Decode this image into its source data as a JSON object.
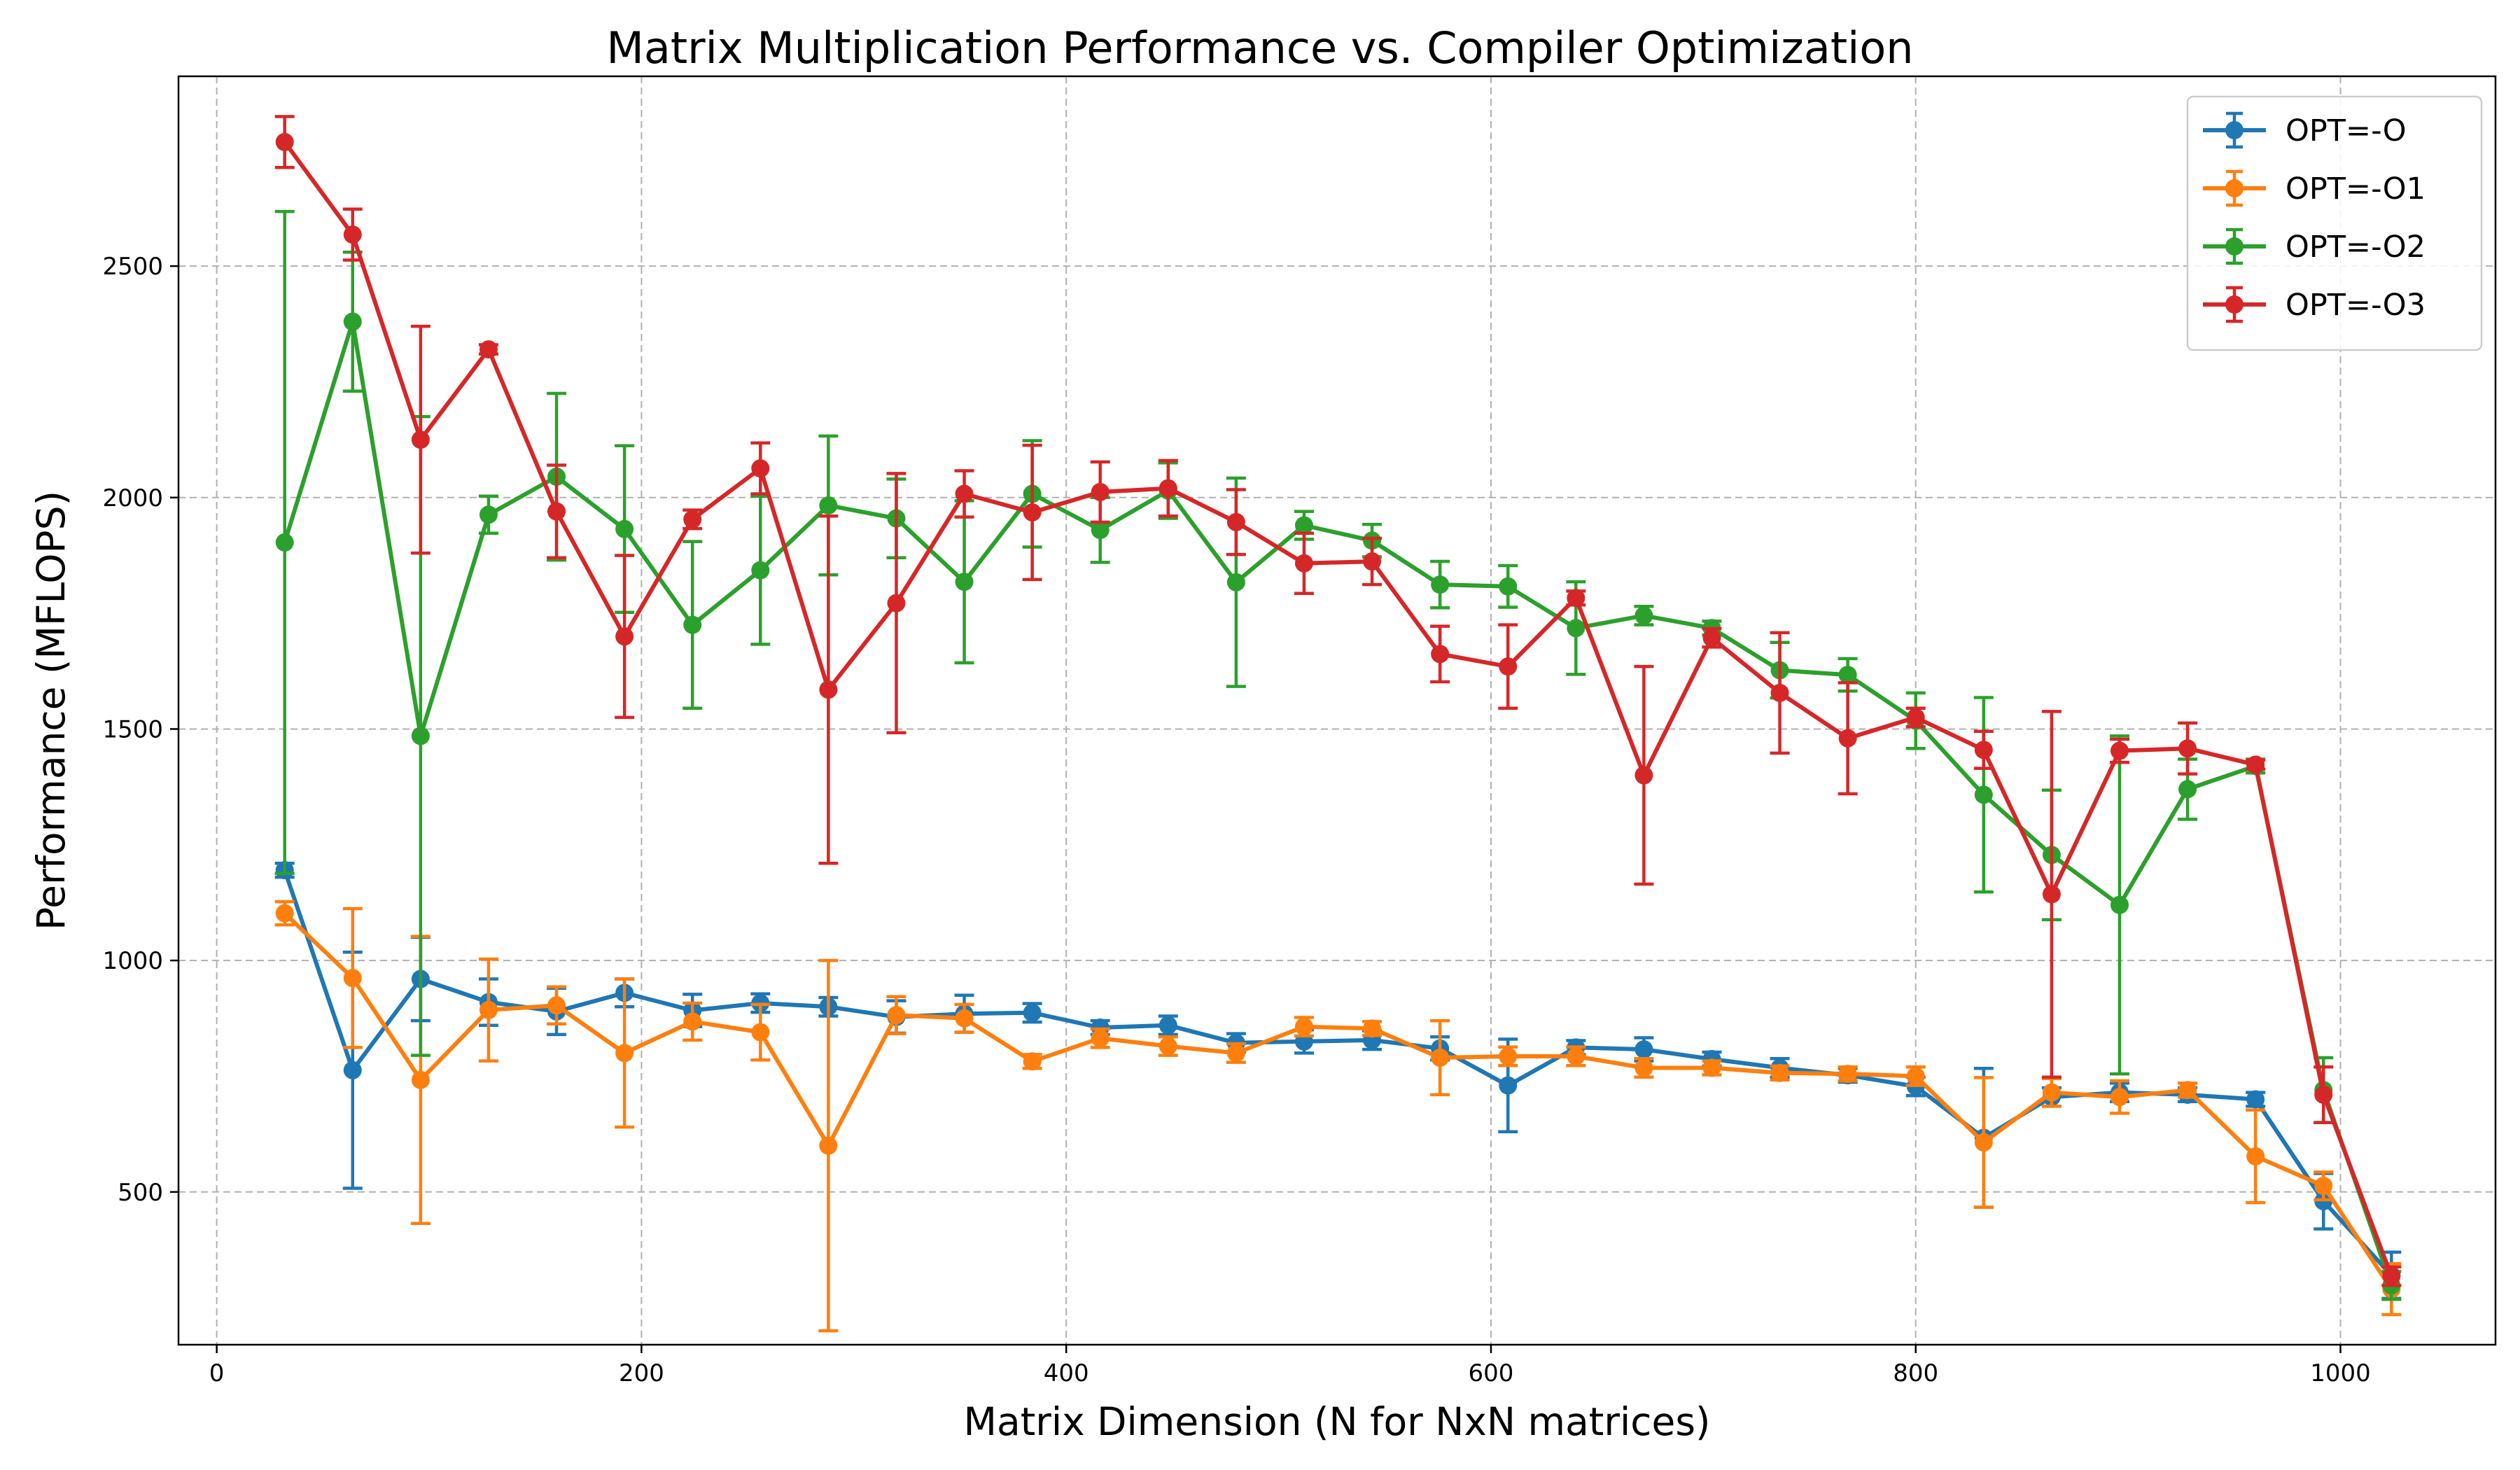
{
  "chart_data": {
    "type": "line",
    "title": "Matrix Multiplication Performance vs. Compiler Optimization",
    "xlabel": "Matrix Dimension (N for NxN matrices)",
    "ylabel": "Performance (MFLOPS)",
    "xlim": [
      -18,
      1073
    ],
    "ylim": [
      170,
      2910
    ],
    "xticks": [
      0,
      200,
      400,
      600,
      800,
      1000
    ],
    "yticks": [
      500,
      1000,
      1500,
      2000,
      2500
    ],
    "grid": true,
    "legend_position": "top-right",
    "error_bars": true,
    "x": [
      32,
      64,
      96,
      128,
      160,
      192,
      224,
      256,
      288,
      320,
      352,
      384,
      416,
      448,
      480,
      512,
      544,
      576,
      608,
      640,
      672,
      704,
      736,
      768,
      800,
      832,
      864,
      896,
      928,
      960,
      992,
      1024
    ],
    "series": [
      {
        "name": "OPT=-O",
        "color": "#1f77b4",
        "values": [
          1195,
          763,
          960,
          910,
          890,
          930,
          892,
          908,
          900,
          878,
          885,
          887,
          855,
          860,
          822,
          825,
          828,
          810,
          730,
          812,
          808,
          787,
          768,
          752,
          728,
          617,
          705,
          715,
          710,
          700,
          480,
          320
        ],
        "errors": [
          15,
          255,
          90,
          50,
          50,
          30,
          35,
          20,
          20,
          35,
          40,
          20,
          15,
          20,
          20,
          25,
          20,
          25,
          100,
          15,
          25,
          15,
          20,
          15,
          20,
          150,
          20,
          20,
          15,
          15,
          60,
          50
        ]
      },
      {
        "name": "OPT=-O1",
        "color": "#ff7f0e",
        "values": [
          1102,
          962,
          742,
          893,
          903,
          800,
          868,
          845,
          600,
          882,
          875,
          782,
          832,
          815,
          800,
          857,
          853,
          790,
          793,
          793,
          768,
          768,
          757,
          755,
          750,
          607,
          715,
          705,
          720,
          577,
          513,
          290
        ],
        "errors": [
          25,
          150,
          310,
          110,
          40,
          160,
          40,
          60,
          400,
          40,
          30,
          15,
          20,
          20,
          20,
          20,
          15,
          80,
          20,
          20,
          20,
          15,
          15,
          15,
          20,
          140,
          30,
          35,
          15,
          100,
          30,
          55
        ]
      },
      {
        "name": "OPT=-O2",
        "color": "#2ca02c",
        "values": [
          1903,
          2380,
          1485,
          1963,
          2045,
          1932,
          1725,
          1843,
          1983,
          1955,
          1818,
          2008,
          1930,
          2015,
          1817,
          1940,
          1907,
          1812,
          1808,
          1718,
          1745,
          1718,
          1627,
          1617,
          1518,
          1358,
          1228,
          1120,
          1370,
          1420,
          720,
          298
        ],
        "errors": [
          715,
          150,
          690,
          40,
          180,
          180,
          180,
          160,
          150,
          85,
          175,
          115,
          70,
          60,
          225,
          30,
          35,
          50,
          45,
          100,
          20,
          15,
          60,
          35,
          60,
          210,
          140,
          365,
          65,
          15,
          70,
          30
        ]
      },
      {
        "name": "OPT=-O3",
        "color": "#d62728",
        "values": [
          2768,
          2568,
          2125,
          2320,
          1970,
          1700,
          1953,
          2063,
          1585,
          1772,
          2008,
          1968,
          2012,
          2020,
          1947,
          1858,
          1862,
          1662,
          1635,
          1783,
          1400,
          1697,
          1578,
          1480,
          1525,
          1455,
          1143,
          1453,
          1458,
          1423,
          710,
          318
        ],
        "errors": [
          55,
          55,
          245,
          10,
          100,
          175,
          20,
          55,
          375,
          280,
          50,
          145,
          65,
          60,
          70,
          65,
          50,
          60,
          90,
          15,
          235,
          20,
          130,
          120,
          20,
          40,
          395,
          25,
          55,
          10,
          60,
          20
        ]
      }
    ]
  }
}
